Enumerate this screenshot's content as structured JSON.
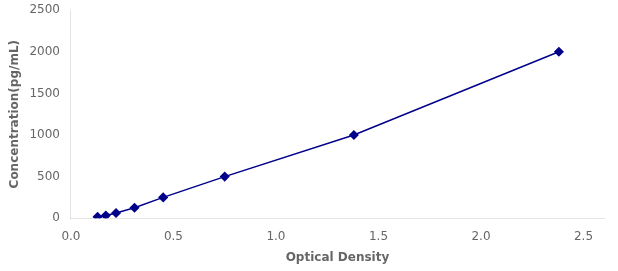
{
  "chart_data": {
    "type": "line",
    "x": [
      0.13,
      0.17,
      0.22,
      0.31,
      0.45,
      0.75,
      1.38,
      2.38
    ],
    "values": [
      15.625,
      31.25,
      62.5,
      125,
      250,
      500,
      1000,
      2000
    ],
    "color": "#00008B",
    "marker": "diamond",
    "xlabel": "Optical Density",
    "ylabel": "Concentration(pg/mL)",
    "xlim": [
      0.0,
      2.6
    ],
    "ylim": [
      0,
      2500
    ],
    "xticks": [
      {
        "value": 0,
        "label": "0.0"
      },
      0.5,
      {
        "value": 1,
        "label": "1.0"
      },
      1.5,
      {
        "value": 2,
        "label": "2.0"
      },
      2.5
    ],
    "yticks": [
      0,
      500,
      1000,
      1500,
      2000,
      2500
    ],
    "grid": false
  }
}
